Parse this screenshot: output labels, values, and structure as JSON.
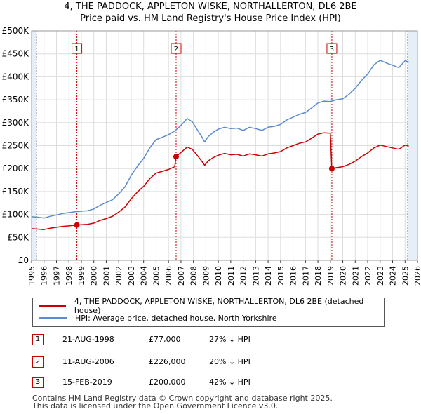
{
  "title_line1": "4, THE PADDOCK, APPLETON WISKE, NORTHALLERTON, DL6 2BE",
  "title_line2": "Price paid vs. HM Land Registry's House Price Index (HPI)",
  "colors": {
    "price_paid": "#cc0000",
    "hpi": "#5b8bd0",
    "shade": "#e6eef8",
    "grid": "#dddddd",
    "marker_line": "#cc0000"
  },
  "legend": {
    "price_paid": "4, THE PADDOCK, APPLETON WISKE, NORTHALLERTON, DL6 2BE (detached house)",
    "hpi": "HPI: Average price, detached house, North Yorkshire"
  },
  "sales": [
    {
      "num": "1",
      "date": "21-AUG-1998",
      "price": "£77,000",
      "hpi_note": "27% ↓ HPI"
    },
    {
      "num": "2",
      "date": "11-AUG-2006",
      "price": "£226,000",
      "hpi_note": "20% ↓ HPI"
    },
    {
      "num": "3",
      "date": "15-FEB-2019",
      "price": "£200,000",
      "hpi_note": "42% ↓ HPI"
    }
  ],
  "footer_line1": "Contains HM Land Registry data © Crown copyright and database right 2025.",
  "footer_line2": "This data is licensed under the Open Government Licence v3.0.",
  "chart_data": {
    "type": "line",
    "title": "Price paid vs. HM Land Registry's House Price Index (HPI)",
    "xlabel": "",
    "ylabel": "",
    "xlim": [
      1995,
      2026
    ],
    "ylim": [
      0,
      500000
    ],
    "grid": true,
    "x_ticks": [
      "1995",
      "1996",
      "1997",
      "1998",
      "1999",
      "2000",
      "2001",
      "2002",
      "2003",
      "2004",
      "2005",
      "2006",
      "2007",
      "2008",
      "2009",
      "2010",
      "2011",
      "2012",
      "2013",
      "2014",
      "2015",
      "2016",
      "2017",
      "2018",
      "2019",
      "2020",
      "2021",
      "2022",
      "2023",
      "2024",
      "2025",
      "2026"
    ],
    "y_ticks": [
      {
        "value": 0,
        "label": "£0"
      },
      {
        "value": 50000,
        "label": "£50K"
      },
      {
        "value": 100000,
        "label": "£100K"
      },
      {
        "value": 150000,
        "label": "£150K"
      },
      {
        "value": 200000,
        "label": "£200K"
      },
      {
        "value": 250000,
        "label": "£250K"
      },
      {
        "value": 300000,
        "label": "£300K"
      },
      {
        "value": 350000,
        "label": "£350K"
      },
      {
        "value": 400000,
        "label": "£400K"
      },
      {
        "value": 450000,
        "label": "£450K"
      },
      {
        "value": 500000,
        "label": "£500K"
      }
    ],
    "shaded_ranges": [
      [
        1995,
        1995.4
      ],
      [
        2025.2,
        2026
      ]
    ],
    "sale_markers": [
      {
        "label": "1",
        "year": 1998.64,
        "price": 77000
      },
      {
        "label": "2",
        "year": 2006.61,
        "price": 226000
      },
      {
        "label": "3",
        "year": 2019.12,
        "price": 200000
      }
    ],
    "series": [
      {
        "name": "HPI: Average price, detached house, North Yorkshire",
        "points": [
          [
            1995.0,
            95000
          ],
          [
            1995.5,
            94000
          ],
          [
            1996.0,
            92000
          ],
          [
            1996.5,
            96000
          ],
          [
            1997.0,
            99000
          ],
          [
            1997.5,
            102000
          ],
          [
            1998.0,
            104000
          ],
          [
            1998.5,
            106000
          ],
          [
            1999.0,
            107000
          ],
          [
            1999.5,
            108000
          ],
          [
            2000.0,
            112000
          ],
          [
            2000.5,
            120000
          ],
          [
            2001.0,
            126000
          ],
          [
            2001.5,
            132000
          ],
          [
            2002.0,
            145000
          ],
          [
            2002.5,
            160000
          ],
          [
            2003.0,
            185000
          ],
          [
            2003.5,
            205000
          ],
          [
            2004.0,
            222000
          ],
          [
            2004.5,
            245000
          ],
          [
            2005.0,
            263000
          ],
          [
            2005.5,
            268000
          ],
          [
            2006.0,
            274000
          ],
          [
            2006.5,
            282000
          ],
          [
            2007.0,
            294000
          ],
          [
            2007.5,
            309000
          ],
          [
            2007.9,
            302000
          ],
          [
            2008.3,
            285000
          ],
          [
            2008.7,
            268000
          ],
          [
            2008.9,
            258000
          ],
          [
            2009.2,
            270000
          ],
          [
            2009.6,
            279000
          ],
          [
            2010.0,
            286000
          ],
          [
            2010.5,
            290000
          ],
          [
            2011.0,
            287000
          ],
          [
            2011.5,
            288000
          ],
          [
            2012.0,
            283000
          ],
          [
            2012.5,
            290000
          ],
          [
            2013.0,
            287000
          ],
          [
            2013.5,
            283000
          ],
          [
            2014.0,
            290000
          ],
          [
            2014.5,
            292000
          ],
          [
            2015.0,
            296000
          ],
          [
            2015.5,
            306000
          ],
          [
            2016.0,
            312000
          ],
          [
            2016.5,
            318000
          ],
          [
            2017.0,
            322000
          ],
          [
            2017.5,
            332000
          ],
          [
            2018.0,
            343000
          ],
          [
            2018.5,
            347000
          ],
          [
            2019.0,
            346000
          ],
          [
            2019.5,
            350000
          ],
          [
            2020.0,
            352000
          ],
          [
            2020.5,
            362000
          ],
          [
            2021.0,
            375000
          ],
          [
            2021.5,
            392000
          ],
          [
            2022.0,
            406000
          ],
          [
            2022.5,
            426000
          ],
          [
            2023.0,
            436000
          ],
          [
            2023.5,
            430000
          ],
          [
            2024.0,
            425000
          ],
          [
            2024.5,
            420000
          ],
          [
            2025.0,
            435000
          ],
          [
            2025.3,
            432000
          ]
        ]
      },
      {
        "name": "4, THE PADDOCK, APPLETON WISKE, NORTHALLERTON, DL6 2BE (detached house)",
        "points": [
          [
            1995.0,
            69000
          ],
          [
            1995.5,
            68000
          ],
          [
            1996.0,
            67000
          ],
          [
            1996.5,
            70000
          ],
          [
            1997.0,
            72000
          ],
          [
            1997.5,
            74000
          ],
          [
            1998.0,
            75000
          ],
          [
            1998.64,
            77000
          ],
          [
            1999.0,
            77500
          ],
          [
            1999.5,
            78500
          ],
          [
            2000.0,
            81000
          ],
          [
            2000.5,
            87000
          ],
          [
            2001.0,
            91000
          ],
          [
            2001.5,
            96000
          ],
          [
            2002.0,
            105000
          ],
          [
            2002.5,
            116000
          ],
          [
            2003.0,
            134000
          ],
          [
            2003.5,
            149000
          ],
          [
            2004.0,
            161000
          ],
          [
            2004.5,
            178000
          ],
          [
            2005.0,
            190000
          ],
          [
            2005.5,
            194000
          ],
          [
            2006.0,
            198000
          ],
          [
            2006.5,
            204000
          ],
          [
            2006.61,
            226000
          ],
          [
            2007.0,
            235000
          ],
          [
            2007.5,
            247000
          ],
          [
            2007.9,
            242000
          ],
          [
            2008.3,
            229000
          ],
          [
            2008.7,
            215000
          ],
          [
            2008.9,
            207000
          ],
          [
            2009.2,
            217000
          ],
          [
            2009.6,
            224000
          ],
          [
            2010.0,
            229000
          ],
          [
            2010.5,
            233000
          ],
          [
            2011.0,
            230000
          ],
          [
            2011.5,
            231000
          ],
          [
            2012.0,
            227000
          ],
          [
            2012.5,
            232000
          ],
          [
            2013.0,
            230000
          ],
          [
            2013.5,
            227000
          ],
          [
            2014.0,
            232000
          ],
          [
            2014.5,
            234000
          ],
          [
            2015.0,
            237000
          ],
          [
            2015.5,
            245000
          ],
          [
            2016.0,
            250000
          ],
          [
            2016.5,
            255000
          ],
          [
            2017.0,
            258000
          ],
          [
            2017.5,
            266000
          ],
          [
            2018.0,
            275000
          ],
          [
            2018.5,
            278000
          ],
          [
            2019.0,
            277000
          ],
          [
            2019.12,
            200000
          ],
          [
            2019.5,
            202000
          ],
          [
            2020.0,
            204000
          ],
          [
            2020.5,
            209000
          ],
          [
            2021.0,
            216000
          ],
          [
            2021.5,
            226000
          ],
          [
            2022.0,
            234000
          ],
          [
            2022.5,
            245000
          ],
          [
            2023.0,
            251000
          ],
          [
            2023.5,
            248000
          ],
          [
            2024.0,
            245000
          ],
          [
            2024.5,
            242000
          ],
          [
            2025.0,
            251000
          ],
          [
            2025.3,
            249000
          ]
        ]
      }
    ]
  }
}
